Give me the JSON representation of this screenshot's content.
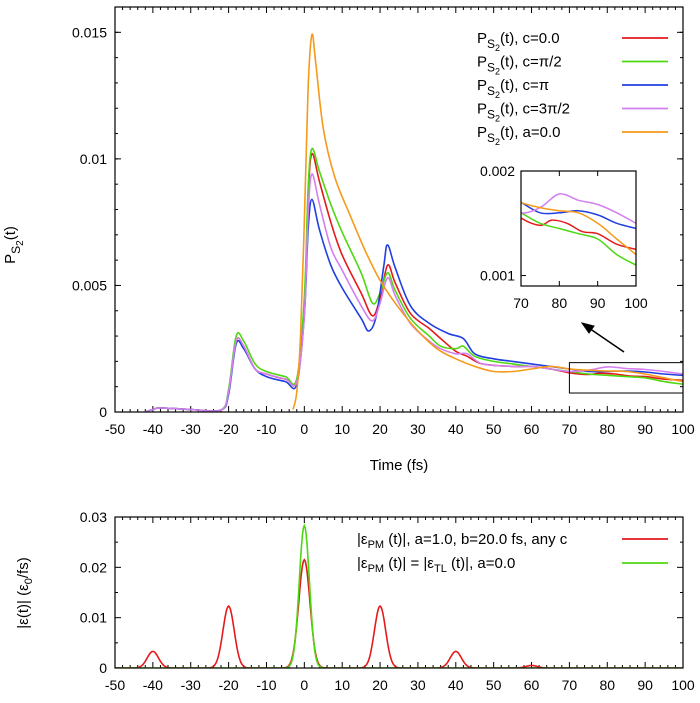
{
  "chart_data": [
    {
      "type": "line",
      "title": "",
      "xlabel": "Time (fs)",
      "ylabel": "P_S2(t)",
      "ylabel_base": "P",
      "ylabel_sub": "S",
      "ylabel_subsub": "2",
      "ylabel_tail": "(t)",
      "xlim": [
        -50,
        100
      ],
      "ylim": [
        0,
        0.016
      ],
      "xticks": [
        -50,
        -40,
        -30,
        -20,
        -10,
        0,
        10,
        20,
        30,
        40,
        50,
        60,
        70,
        80,
        90,
        100
      ],
      "yticks": [
        0,
        0.005,
        0.01,
        0.015
      ],
      "ytick_labels": [
        "0",
        "0.005",
        "0.01",
        "0.015"
      ],
      "legend_position": "top-right",
      "series": [
        {
          "name": "P_S2(t), c=0.0",
          "legend_suffix": ", c=0.0",
          "color": "#e41a1c",
          "points": [
            [
              -42,
              0
            ],
            [
              -40,
              0.0001
            ],
            [
              -38,
              0.00016
            ],
            [
              -30,
              0.0001
            ],
            [
              -22,
              8e-05
            ],
            [
              -20,
              0.0008
            ],
            [
              -18,
              0.0028
            ],
            [
              -16,
              0.0026
            ],
            [
              -13,
              0.0017
            ],
            [
              -10,
              0.0015
            ],
            [
              -5,
              0.0013
            ],
            [
              -2,
              0.0013
            ],
            [
              0,
              0.0042
            ],
            [
              1,
              0.0085
            ],
            [
              2,
              0.0102
            ],
            [
              4,
              0.0091
            ],
            [
              7,
              0.0075
            ],
            [
              10,
              0.0062
            ],
            [
              15,
              0.0047
            ],
            [
              18,
              0.0038
            ],
            [
              20,
              0.0045
            ],
            [
              22,
              0.0058
            ],
            [
              24,
              0.0051
            ],
            [
              28,
              0.0039
            ],
            [
              33,
              0.0033
            ],
            [
              36,
              0.0029
            ],
            [
              40,
              0.0024
            ],
            [
              43,
              0.0022
            ],
            [
              47,
              0.0019
            ],
            [
              55,
              0.0018
            ],
            [
              60,
              0.0018
            ],
            [
              65,
              0.0017
            ],
            [
              70,
              0.00155
            ],
            [
              75,
              0.00148
            ],
            [
              78,
              0.00153
            ],
            [
              82,
              0.0015
            ],
            [
              86,
              0.00142
            ],
            [
              90,
              0.0014
            ],
            [
              95,
              0.0013
            ],
            [
              100,
              0.00125
            ]
          ]
        },
        {
          "name": "P_S2(t), c=π/2",
          "legend_suffix": ", c=π/2",
          "color": "#4dd810",
          "points": [
            [
              -42,
              0
            ],
            [
              -40,
              0.0001
            ],
            [
              -38,
              0.00016
            ],
            [
              -30,
              0.0001
            ],
            [
              -22,
              8e-05
            ],
            [
              -20,
              0.0009
            ],
            [
              -18,
              0.003
            ],
            [
              -16,
              0.0028
            ],
            [
              -13,
              0.0019
            ],
            [
              -10,
              0.0016
            ],
            [
              -5,
              0.0014
            ],
            [
              -2,
              0.0013
            ],
            [
              0,
              0.0045
            ],
            [
              1,
              0.0088
            ],
            [
              2,
              0.0104
            ],
            [
              4,
              0.0095
            ],
            [
              7,
              0.0082
            ],
            [
              10,
              0.0071
            ],
            [
              15,
              0.0055
            ],
            [
              18,
              0.0043
            ],
            [
              20,
              0.0047
            ],
            [
              22,
              0.0055
            ],
            [
              24,
              0.0048
            ],
            [
              28,
              0.0037
            ],
            [
              33,
              0.003
            ],
            [
              36,
              0.0026
            ],
            [
              40,
              0.0025
            ],
            [
              42,
              0.0026
            ],
            [
              45,
              0.0022
            ],
            [
              50,
              0.002
            ],
            [
              55,
              0.0019
            ],
            [
              60,
              0.0018
            ],
            [
              65,
              0.0017
            ],
            [
              70,
              0.0016
            ],
            [
              75,
              0.0015
            ],
            [
              80,
              0.00145
            ],
            [
              85,
              0.0014
            ],
            [
              90,
              0.00135
            ],
            [
              95,
              0.0012
            ],
            [
              100,
              0.0011
            ]
          ]
        },
        {
          "name": "P_S2(t), c=π",
          "legend_suffix": ", c=π",
          "color": "#1f3fe0",
          "points": [
            [
              -42,
              0
            ],
            [
              -40,
              0.0001
            ],
            [
              -38,
              0.00016
            ],
            [
              -30,
              0.0001
            ],
            [
              -22,
              8e-05
            ],
            [
              -20,
              0.0007
            ],
            [
              -18,
              0.0027
            ],
            [
              -16,
              0.0025
            ],
            [
              -13,
              0.0017
            ],
            [
              -10,
              0.0014
            ],
            [
              -5,
              0.0012
            ],
            [
              -2,
              0.0011
            ],
            [
              0,
              0.0038
            ],
            [
              1,
              0.0072
            ],
            [
              2,
              0.0084
            ],
            [
              4,
              0.0072
            ],
            [
              7,
              0.0058
            ],
            [
              10,
              0.0049
            ],
            [
              15,
              0.0037
            ],
            [
              17,
              0.0032
            ],
            [
              19,
              0.0038
            ],
            [
              21,
              0.0058
            ],
            [
              22,
              0.0066
            ],
            [
              24,
              0.0057
            ],
            [
              28,
              0.0042
            ],
            [
              33,
              0.0035
            ],
            [
              38,
              0.0031
            ],
            [
              42,
              0.0029
            ],
            [
              45,
              0.0023
            ],
            [
              50,
              0.0021
            ],
            [
              55,
              0.002
            ],
            [
              60,
              0.0019
            ],
            [
              65,
              0.0018
            ],
            [
              70,
              0.0017
            ],
            [
              75,
              0.0016
            ],
            [
              80,
              0.0016
            ],
            [
              85,
              0.00162
            ],
            [
              90,
              0.00158
            ],
            [
              95,
              0.0015
            ],
            [
              100,
              0.00145
            ]
          ]
        },
        {
          "name": "P_S2(t), c=3π/2",
          "legend_suffix": ", c=3π/2",
          "color": "#d37ff0",
          "points": [
            [
              -42,
              0
            ],
            [
              -40,
              0.0001
            ],
            [
              -38,
              0.00016
            ],
            [
              -30,
              0.0001
            ],
            [
              -22,
              8e-05
            ],
            [
              -20,
              0.0008
            ],
            [
              -18,
              0.0028
            ],
            [
              -16,
              0.0026
            ],
            [
              -13,
              0.0017
            ],
            [
              -10,
              0.0015
            ],
            [
              -5,
              0.0013
            ],
            [
              -2,
              0.0012
            ],
            [
              0,
              0.0038
            ],
            [
              1,
              0.0078
            ],
            [
              2,
              0.0094
            ],
            [
              4,
              0.0082
            ],
            [
              7,
              0.0065
            ],
            [
              10,
              0.0056
            ],
            [
              15,
              0.0042
            ],
            [
              18,
              0.0036
            ],
            [
              20,
              0.0043
            ],
            [
              22,
              0.0053
            ],
            [
              24,
              0.0046
            ],
            [
              28,
              0.0035
            ],
            [
              33,
              0.0028
            ],
            [
              36,
              0.0025
            ],
            [
              40,
              0.0023
            ],
            [
              43,
              0.0023
            ],
            [
              47,
              0.0019
            ],
            [
              55,
              0.0018
            ],
            [
              60,
              0.0018
            ],
            [
              65,
              0.0017
            ],
            [
              70,
              0.0016
            ],
            [
              75,
              0.00165
            ],
            [
              80,
              0.00178
            ],
            [
              85,
              0.00172
            ],
            [
              90,
              0.00168
            ],
            [
              95,
              0.0016
            ],
            [
              100,
              0.0015
            ]
          ]
        },
        {
          "name": "P_S2(t), a=0.0",
          "legend_suffix": ", a=0.0",
          "color": "#f59a1a",
          "points": [
            [
              -3,
              0.0001
            ],
            [
              -2,
              0.0008
            ],
            [
              -1,
              0.003
            ],
            [
              0,
              0.0075
            ],
            [
              1,
              0.0128
            ],
            [
              2,
              0.0149
            ],
            [
              3,
              0.0138
            ],
            [
              5,
              0.0112
            ],
            [
              8,
              0.0093
            ],
            [
              12,
              0.0078
            ],
            [
              16,
              0.0064
            ],
            [
              20,
              0.0052
            ],
            [
              25,
              0.0041
            ],
            [
              30,
              0.0032
            ],
            [
              35,
              0.0025
            ],
            [
              40,
              0.0021
            ],
            [
              45,
              0.0018
            ],
            [
              50,
              0.0016
            ],
            [
              55,
              0.0016
            ],
            [
              60,
              0.0017
            ],
            [
              65,
              0.0018
            ],
            [
              70,
              0.0017
            ],
            [
              75,
              0.00165
            ],
            [
              80,
              0.00162
            ],
            [
              85,
              0.0016
            ],
            [
              90,
              0.0015
            ],
            [
              95,
              0.00135
            ],
            [
              100,
              0.0012
            ]
          ]
        }
      ],
      "inset": {
        "xlim": [
          70,
          100
        ],
        "ylim": [
          0.0009,
          0.002
        ],
        "xticks": [
          70,
          80,
          90,
          100
        ],
        "yticks": [
          0.001,
          0.002
        ],
        "ytick_labels": [
          "0.001",
          "0.002"
        ]
      }
    },
    {
      "type": "line",
      "title": "",
      "xlabel": "",
      "ylabel": "|ε(t)| (ε0/fs)",
      "ylabel_main": "|ε(t)| (ε",
      "ylabel_sub": "0",
      "ylabel_tail": "/fs)",
      "xlim": [
        -50,
        100
      ],
      "ylim": [
        0,
        0.03
      ],
      "xticks": [
        -50,
        -40,
        -30,
        -20,
        -10,
        0,
        10,
        20,
        30,
        40,
        50,
        60,
        70,
        80,
        90,
        100
      ],
      "yticks": [
        0,
        0.01,
        0.02,
        0.03
      ],
      "ytick_labels": [
        "0",
        "0.01",
        "0.02",
        "0.03"
      ],
      "legend_position": "top-right",
      "series": [
        {
          "name": "|εPM (t)|, a=1.0, b=20.0 fs, any c",
          "legend_sub": "PM",
          "legend_tail": " (t)|, a=1.0, b=20.0 fs, any c",
          "color": "#e41a1c",
          "pulse_centers": [
            -40,
            -20,
            0,
            20,
            40,
            60
          ],
          "pulse_peaks": [
            0.0033,
            0.0123,
            0.0215,
            0.0123,
            0.0033,
            0.0005
          ],
          "pulse_width_fs": 2.1
        },
        {
          "name": "|εPM (t)| = |εTL (t)|, a=0.0",
          "legend_sub": "PM",
          "legend_mid": " (t)| = |ε",
          "legend_sub2": "TL",
          "legend_tail": " (t)|, a=0.0",
          "color": "#4dd810",
          "pulse_centers": [
            0
          ],
          "pulse_peaks": [
            0.0283
          ],
          "pulse_width_fs": 1.9
        }
      ]
    }
  ]
}
